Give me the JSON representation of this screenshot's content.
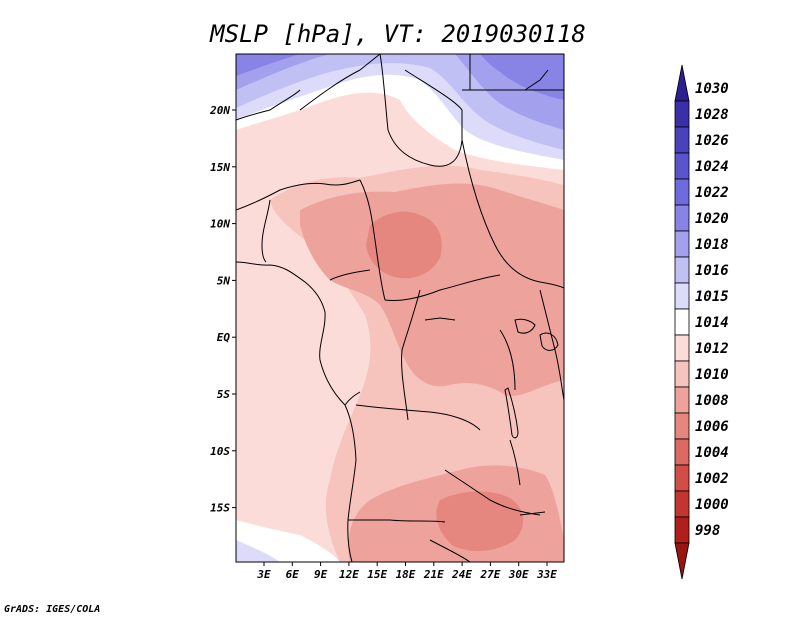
{
  "title": "MSLP [hPa], VT: 2019030118",
  "credit": "GrADS: IGES/COLA",
  "lat_labels": [
    "20N",
    "15N",
    "10N",
    "5N",
    "EQ",
    "5S",
    "10S",
    "15S"
  ],
  "lon_labels": [
    "3E",
    "6E",
    "9E",
    "12E",
    "15E",
    "18E",
    "21E",
    "24E",
    "27E",
    "30E",
    "33E"
  ],
  "colorbar": {
    "levels": [
      "1030",
      "1028",
      "1026",
      "1024",
      "1022",
      "1020",
      "1018",
      "1016",
      "1015",
      "1014",
      "1012",
      "1010",
      "1008",
      "1006",
      "1004",
      "1002",
      "1000",
      "998"
    ],
    "colors": [
      "#2b1f91",
      "#3a2fa8",
      "#4a41bd",
      "#5a55cf",
      "#6e6bdc",
      "#8784e6",
      "#a3a1ee",
      "#c1c0f5",
      "#dcdcfa",
      "#ffffff",
      "#fcdcd8",
      "#f6c3bd",
      "#eea29c",
      "#e6877f",
      "#dc6a62",
      "#d24d46",
      "#c43531",
      "#b01f1c",
      "#9a1411"
    ]
  },
  "map": {
    "colors": {
      "p1010": "#f6c3bd",
      "p1008": "#eea29c",
      "p1006": "#e6877f",
      "p1012": "#fcdcd8",
      "p1014": "#ffffff",
      "p1015": "#dcdcfa",
      "p1016": "#c1c0f5",
      "p1018": "#a3a1ee",
      "p1020": "#8784e6"
    }
  }
}
